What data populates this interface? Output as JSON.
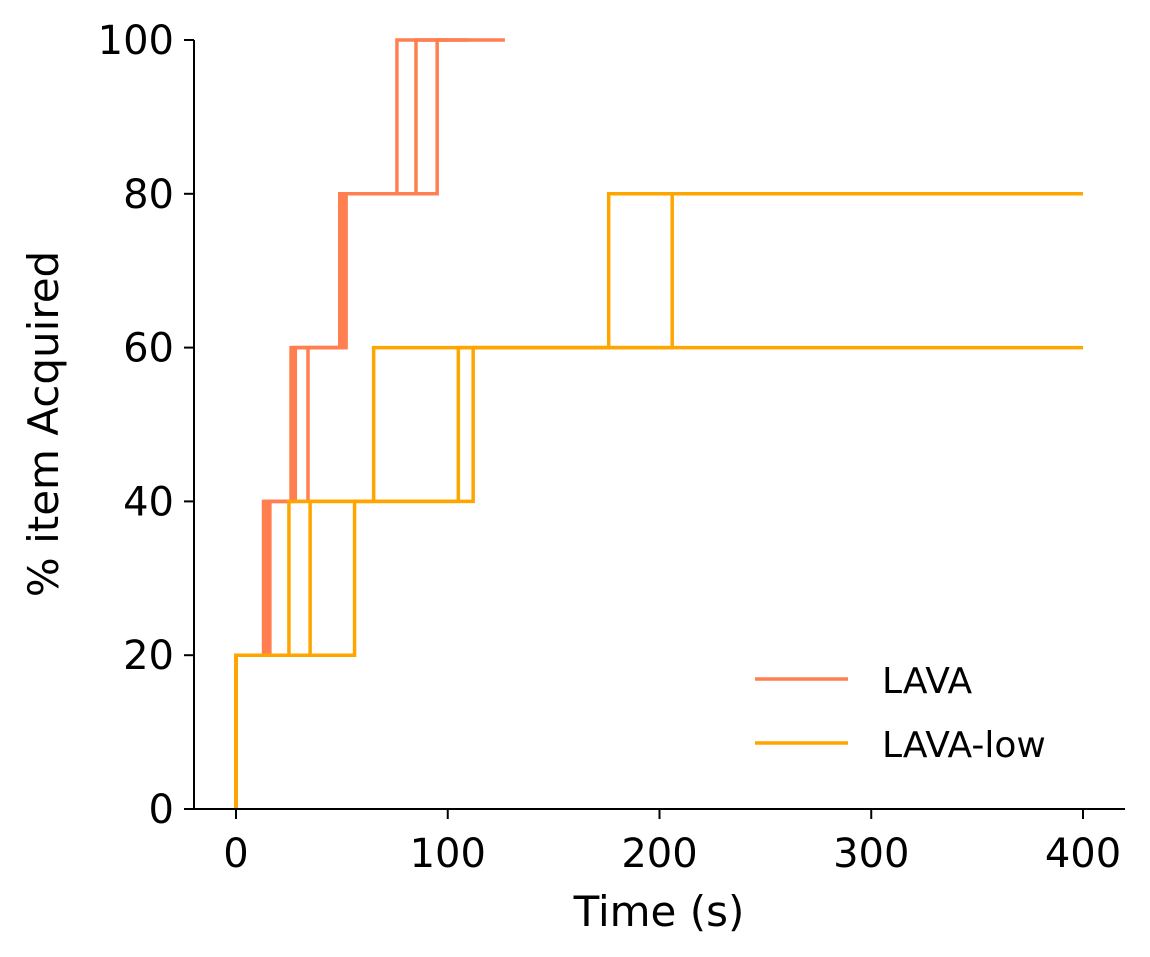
{
  "chart_data": {
    "type": "line",
    "title": "",
    "xlabel": "Time (s)",
    "ylabel": "% item Acquired",
    "xlim": [
      -20,
      420
    ],
    "ylim": [
      0,
      100
    ],
    "xticks": [
      0,
      100,
      200,
      300,
      400
    ],
    "yticks": [
      0,
      20,
      40,
      60,
      80,
      100
    ],
    "grid": false,
    "legend_position": "lower-right",
    "legend": [
      {
        "label": "LAVA",
        "color": "#ff7f50"
      },
      {
        "label": "LAVA-low",
        "color": "#ffa500"
      }
    ],
    "series": [
      {
        "name": "LAVA",
        "color": "#ff7f50",
        "steps": [
          [
            0,
            0
          ],
          [
            0,
            20
          ],
          [
            13,
            40
          ],
          [
            26,
            60
          ],
          [
            49,
            80
          ],
          [
            76,
            100
          ],
          [
            127,
            100
          ]
        ]
      },
      {
        "name": "LAVA",
        "color": "#ff7f50",
        "steps": [
          [
            0,
            0
          ],
          [
            0,
            20
          ],
          [
            14,
            40
          ],
          [
            27,
            60
          ],
          [
            50,
            80
          ],
          [
            85,
            100
          ],
          [
            100,
            100
          ]
        ]
      },
      {
        "name": "LAVA",
        "color": "#ff7f50",
        "steps": [
          [
            0,
            0
          ],
          [
            0,
            20
          ],
          [
            15,
            40
          ],
          [
            34,
            60
          ],
          [
            52,
            80
          ],
          [
            95,
            100
          ],
          [
            110,
            100
          ]
        ]
      },
      {
        "name": "LAVA",
        "color": "#ff7f50",
        "steps": [
          [
            0,
            0
          ],
          [
            0,
            20
          ],
          [
            16,
            40
          ],
          [
            28,
            60
          ],
          [
            51,
            80
          ],
          [
            80,
            80
          ]
        ]
      },
      {
        "name": "LAVA-low",
        "color": "#ffa500",
        "steps": [
          [
            0,
            0
          ],
          [
            0,
            20
          ],
          [
            25,
            40
          ],
          [
            65,
            60
          ],
          [
            176,
            80
          ],
          [
            400,
            80
          ]
        ]
      },
      {
        "name": "LAVA-low",
        "color": "#ffa500",
        "steps": [
          [
            0,
            0
          ],
          [
            0,
            20
          ],
          [
            35,
            40
          ],
          [
            105,
            60
          ],
          [
            206,
            80
          ],
          [
            400,
            80
          ]
        ]
      },
      {
        "name": "LAVA-low",
        "color": "#ffa500",
        "steps": [
          [
            0,
            0
          ],
          [
            0,
            20
          ],
          [
            56,
            40
          ],
          [
            112,
            60
          ],
          [
            400,
            60
          ]
        ]
      }
    ]
  }
}
